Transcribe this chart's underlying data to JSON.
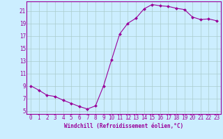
{
  "x": [
    0,
    1,
    2,
    3,
    4,
    5,
    6,
    7,
    8,
    9,
    10,
    11,
    12,
    13,
    14,
    15,
    16,
    17,
    18,
    19,
    20,
    21,
    22,
    23
  ],
  "y": [
    9,
    8.3,
    7.5,
    7.3,
    6.7,
    6.2,
    5.7,
    5.3,
    5.8,
    9.0,
    13.2,
    17.3,
    19.0,
    19.8,
    21.3,
    22.0,
    21.8,
    21.7,
    21.4,
    21.2,
    20.0,
    19.6,
    19.7,
    19.4
  ],
  "line_color": "#990099",
  "marker": "D",
  "marker_size": 2.0,
  "background_color": "#cceeff",
  "grid_color": "#aacccc",
  "xlabel": "Windchill (Refroidissement éolien,°C)",
  "xlabel_fontsize": 5.5,
  "xtick_labels": [
    "0",
    "1",
    "2",
    "3",
    "4",
    "5",
    "6",
    "7",
    "8",
    "9",
    "10",
    "11",
    "12",
    "13",
    "14",
    "15",
    "16",
    "17",
    "18",
    "19",
    "20",
    "21",
    "22",
    "23"
  ],
  "ytick_labels": [
    "5",
    "7",
    "9",
    "11",
    "13",
    "15",
    "17",
    "19",
    "21"
  ],
  "yticks": [
    5,
    7,
    9,
    11,
    13,
    15,
    17,
    19,
    21
  ],
  "xlim": [
    -0.5,
    23.5
  ],
  "ylim": [
    4.5,
    22.5
  ],
  "tick_fontsize": 5.5
}
